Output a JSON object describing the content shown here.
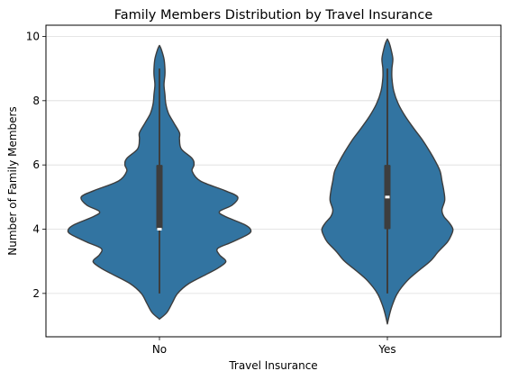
{
  "chart_data": {
    "type": "violin",
    "title": "Family Members Distribution by Travel Insurance",
    "xlabel": "Travel Insurance",
    "ylabel": "Number of Family Members",
    "categories": [
      "No",
      "Yes"
    ],
    "ylim": [
      0.65,
      10.35
    ],
    "yticks": [
      2,
      4,
      6,
      8,
      10
    ],
    "grid": "y",
    "color": "#3274a1",
    "edge_color": "#3d3d3d",
    "violins": [
      {
        "category": "No",
        "whisker_min": 2,
        "q1": 4,
        "median": 4,
        "q3": 6,
        "whisker_max": 9,
        "density_profile": [
          [
            1.2,
            0.0
          ],
          [
            1.4,
            0.08
          ],
          [
            1.7,
            0.14
          ],
          [
            2.0,
            0.2
          ],
          [
            2.3,
            0.32
          ],
          [
            2.6,
            0.52
          ],
          [
            2.8,
            0.65
          ],
          [
            3.0,
            0.73
          ],
          [
            3.2,
            0.66
          ],
          [
            3.4,
            0.64
          ],
          [
            3.6,
            0.8
          ],
          [
            3.85,
            0.98
          ],
          [
            4.0,
            1.0
          ],
          [
            4.15,
            0.93
          ],
          [
            4.4,
            0.72
          ],
          [
            4.55,
            0.66
          ],
          [
            4.75,
            0.8
          ],
          [
            5.0,
            0.86
          ],
          [
            5.2,
            0.72
          ],
          [
            5.5,
            0.45
          ],
          [
            5.8,
            0.36
          ],
          [
            6.0,
            0.38
          ],
          [
            6.2,
            0.36
          ],
          [
            6.5,
            0.24
          ],
          [
            6.8,
            0.22
          ],
          [
            7.0,
            0.22
          ],
          [
            7.3,
            0.16
          ],
          [
            7.6,
            0.1
          ],
          [
            7.9,
            0.07
          ],
          [
            8.2,
            0.06
          ],
          [
            8.5,
            0.05
          ],
          [
            8.8,
            0.06
          ],
          [
            9.0,
            0.06
          ],
          [
            9.3,
            0.05
          ],
          [
            9.6,
            0.02
          ],
          [
            9.72,
            0.0
          ]
        ]
      },
      {
        "category": "Yes",
        "whisker_min": 2,
        "q1": 4,
        "median": 5,
        "q3": 6,
        "whisker_max": 9,
        "density_profile": [
          [
            1.05,
            0.0
          ],
          [
            1.3,
            0.02
          ],
          [
            1.6,
            0.05
          ],
          [
            2.0,
            0.11
          ],
          [
            2.4,
            0.22
          ],
          [
            2.7,
            0.34
          ],
          [
            3.0,
            0.47
          ],
          [
            3.3,
            0.56
          ],
          [
            3.6,
            0.66
          ],
          [
            3.8,
            0.7
          ],
          [
            4.0,
            0.72
          ],
          [
            4.2,
            0.68
          ],
          [
            4.4,
            0.62
          ],
          [
            4.6,
            0.6
          ],
          [
            4.9,
            0.63
          ],
          [
            5.2,
            0.62
          ],
          [
            5.5,
            0.6
          ],
          [
            5.8,
            0.58
          ],
          [
            6.1,
            0.53
          ],
          [
            6.4,
            0.47
          ],
          [
            6.8,
            0.38
          ],
          [
            7.1,
            0.3
          ],
          [
            7.5,
            0.2
          ],
          [
            7.9,
            0.12
          ],
          [
            8.3,
            0.07
          ],
          [
            8.7,
            0.05
          ],
          [
            9.0,
            0.05
          ],
          [
            9.3,
            0.06
          ],
          [
            9.6,
            0.04
          ],
          [
            9.8,
            0.02
          ],
          [
            9.92,
            0.0
          ]
        ]
      }
    ]
  }
}
